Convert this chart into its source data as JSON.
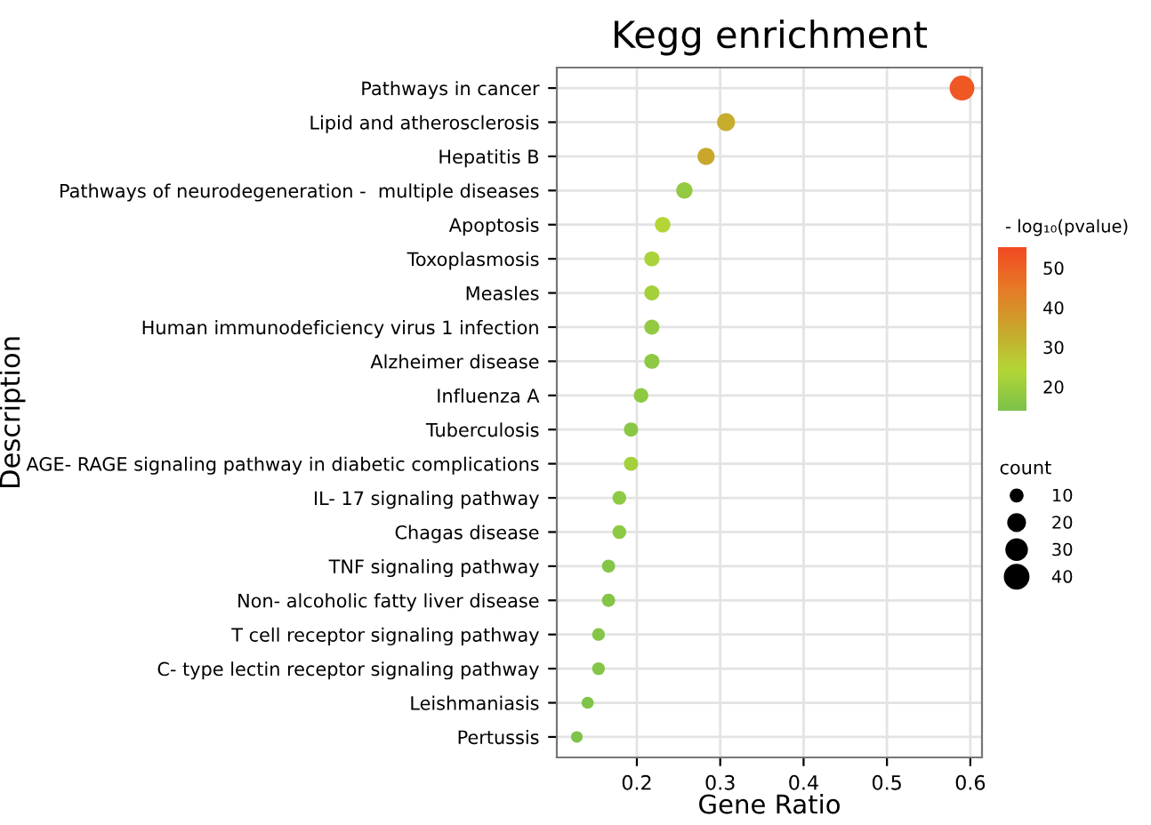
{
  "chart_data": {
    "type": "bubble",
    "title": "Kegg enrichment",
    "xlabel": "Gene Ratio",
    "ylabel": "Description",
    "clabel": "- log₁₀(pvalue)",
    "legend_title": "count",
    "categories": [
      "Pathways in cancer",
      "Lipid and atherosclerosis",
      "Hepatitis B",
      "Pathways of neurodegeneration -  multiple diseases",
      "Apoptosis",
      "Toxoplasmosis",
      "Measles",
      "Human immunodeficiency virus 1 infection",
      "Alzheimer disease",
      "Influenza A",
      "Tuberculosis",
      "AGE- RAGE signaling pathway in diabetic complications",
      "IL- 17 signaling pathway",
      "Chagas disease",
      "TNF signaling pathway",
      "Non- alcoholic fatty liver disease",
      "T cell receptor signaling pathway",
      "C- type lectin receptor signaling pathway",
      "Leishmaniasis",
      "Pertussis"
    ],
    "values": [
      0.59,
      0.307,
      0.283,
      0.257,
      0.231,
      0.218,
      0.218,
      0.218,
      0.218,
      0.205,
      0.193,
      0.193,
      0.179,
      0.179,
      0.166,
      0.166,
      0.154,
      0.154,
      0.141,
      0.128
    ],
    "sizes": [
      46,
      24,
      22,
      20,
      18,
      17,
      17,
      17,
      17,
      16,
      15,
      15,
      14,
      14,
      13,
      13,
      12,
      12,
      11,
      10
    ],
    "cvalues": [
      52,
      33,
      34,
      18,
      24,
      22,
      21,
      18,
      17,
      17,
      16,
      21,
      17,
      17,
      15,
      15,
      15,
      15,
      14,
      14
    ],
    "clim": [
      13.5,
      54.8
    ],
    "cticks": [
      20,
      30,
      40,
      50
    ],
    "size_legend": [
      10,
      20,
      30,
      40
    ],
    "xlim": [
      0.104,
      0.614
    ],
    "xticks": [
      0.2,
      0.3,
      0.4,
      0.5,
      0.6
    ],
    "grid": true,
    "orientation": "horizontal"
  }
}
